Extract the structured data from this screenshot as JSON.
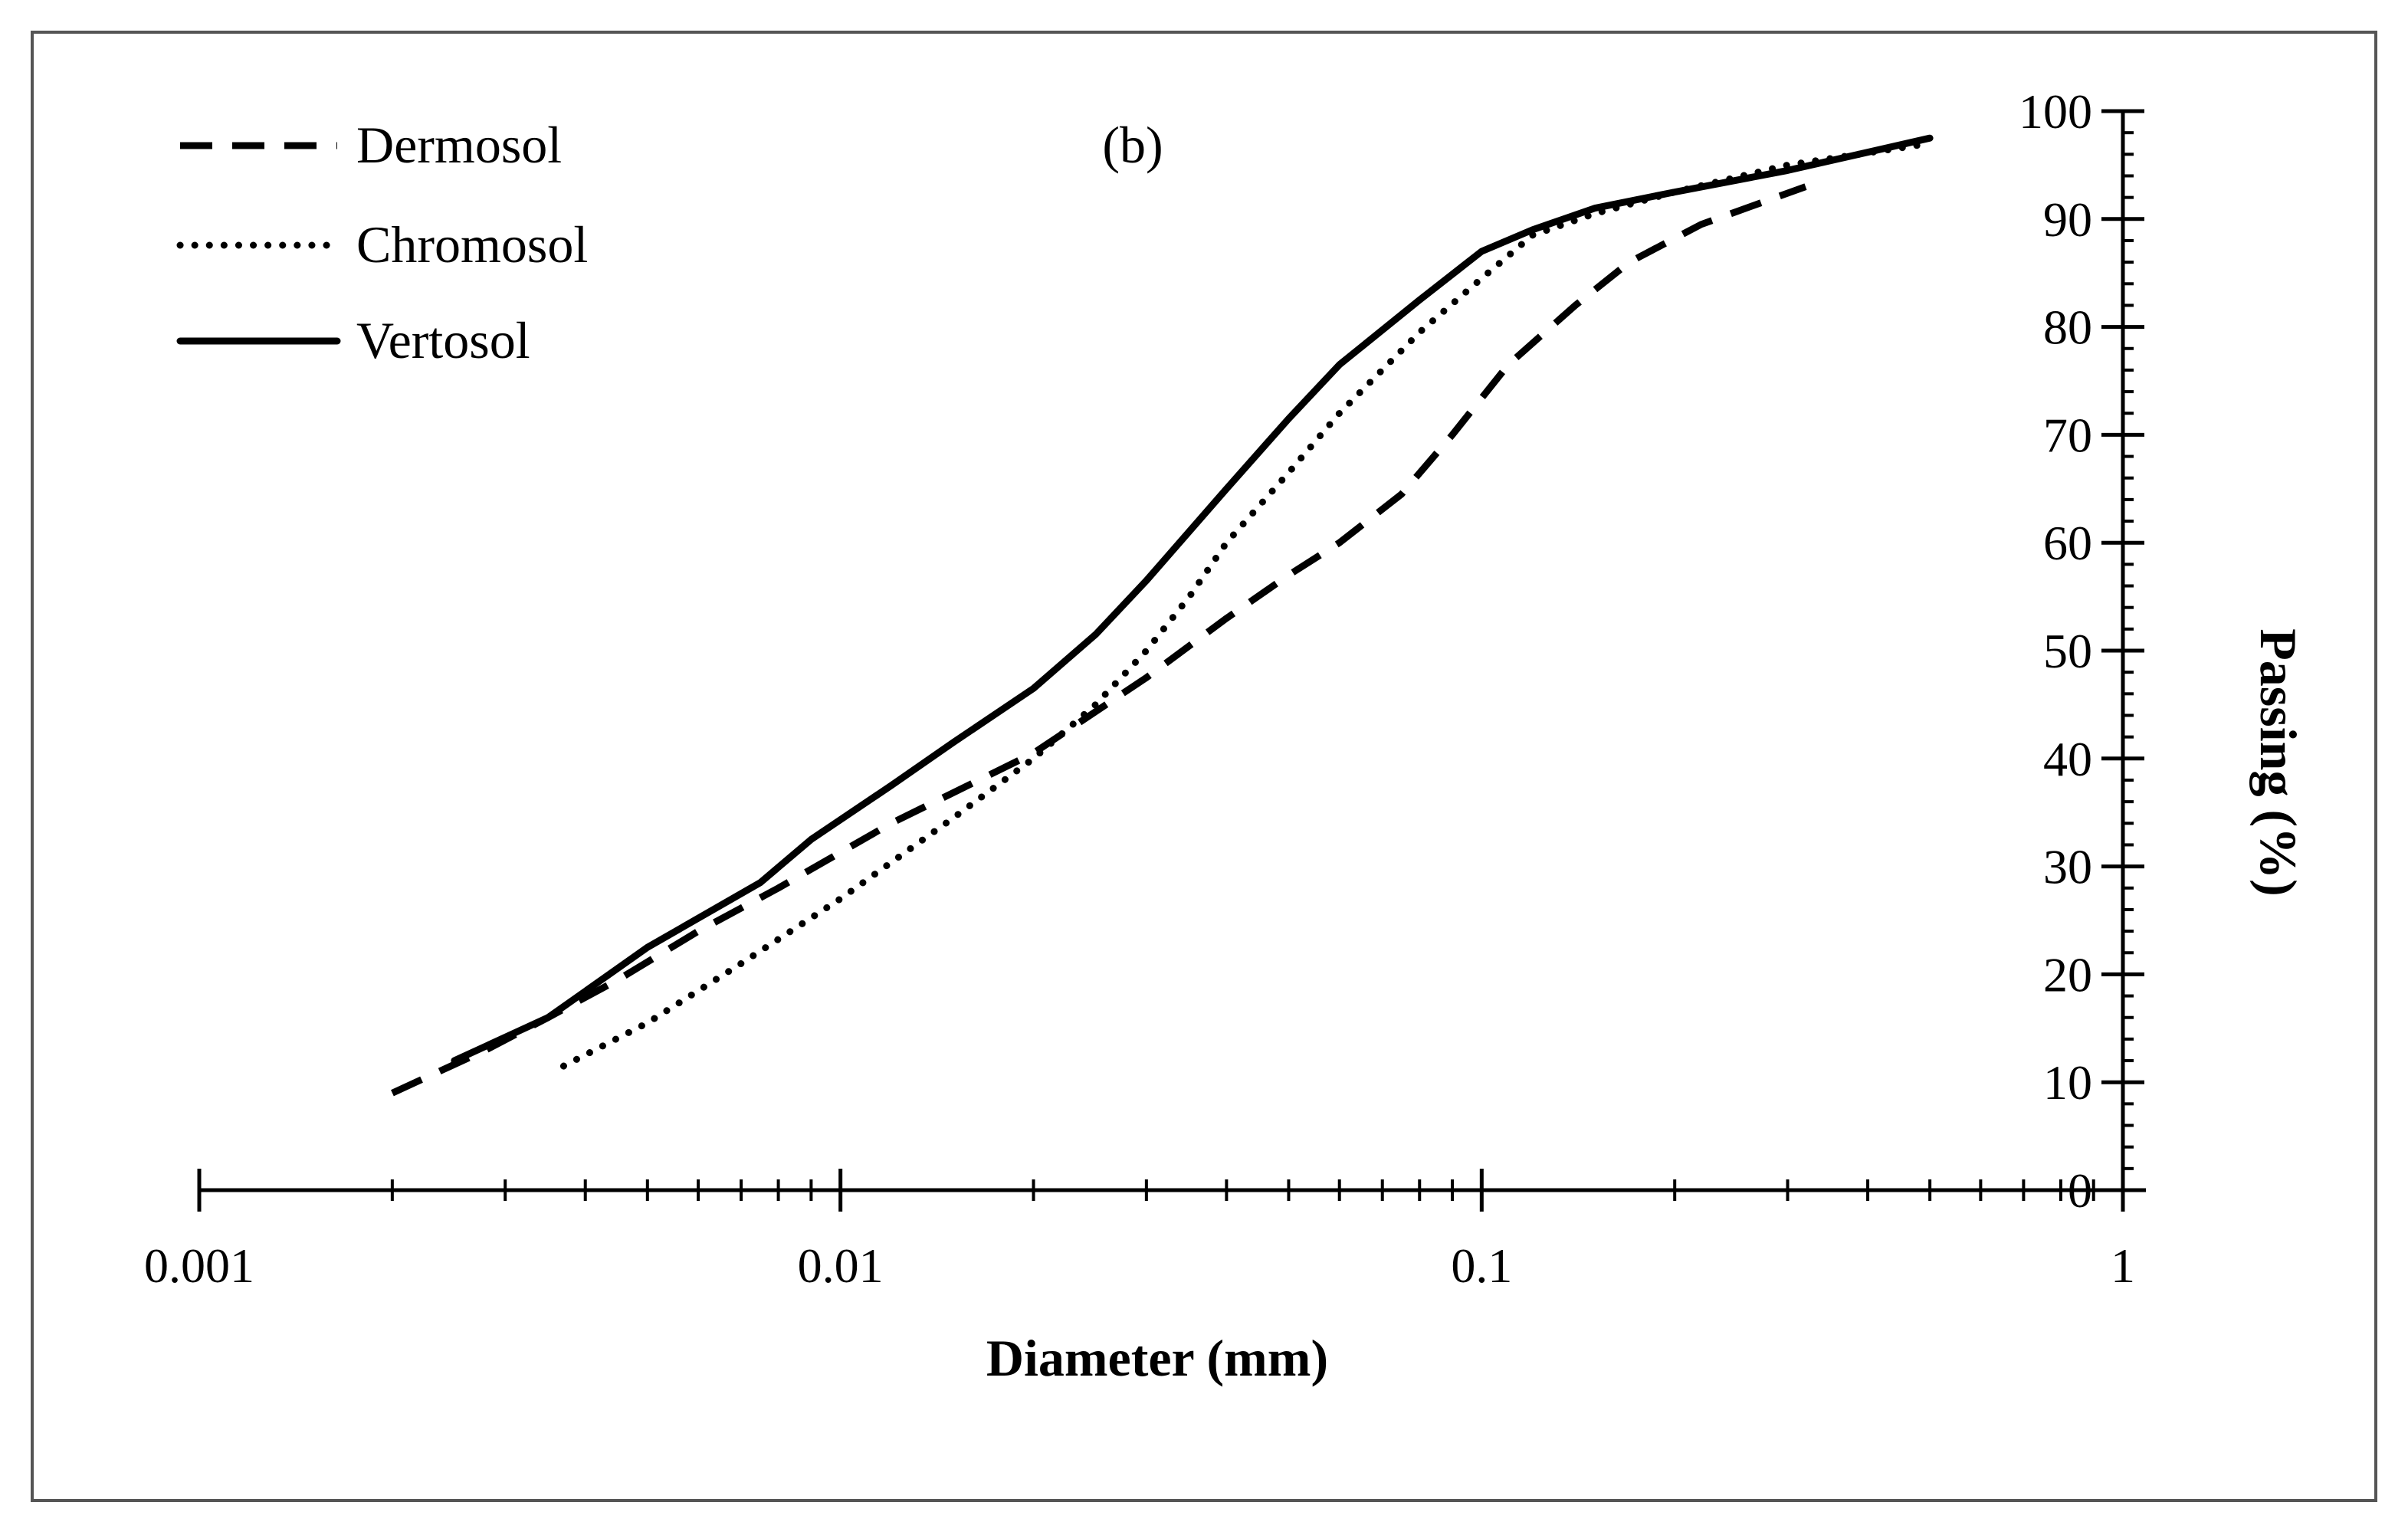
{
  "chart_data": {
    "type": "line",
    "title": "",
    "panel_label": "(b)",
    "xlabel": "Diameter (mm)",
    "ylabel": "Passing (%)",
    "x_scale": "log",
    "xlim": [
      0.001,
      1
    ],
    "ylim": [
      0,
      100
    ],
    "x_ticks": [
      "0.001",
      "0.01",
      "0.1",
      "1"
    ],
    "y_ticks": [
      "0",
      "10",
      "20",
      "30",
      "40",
      "50",
      "60",
      "70",
      "80",
      "90",
      "100"
    ],
    "y_axis_side": "right",
    "legend_position": "top-left",
    "grid": false,
    "series": [
      {
        "name": "Dermosol",
        "style": "dashed",
        "x": [
          0.002,
          0.0028,
          0.0035,
          0.0045,
          0.006,
          0.008,
          0.012,
          0.02,
          0.03,
          0.04,
          0.05,
          0.06,
          0.075,
          0.09,
          0.11,
          0.14,
          0.17,
          0.22,
          0.32
        ],
        "y": [
          9,
          13,
          16,
          19.5,
          24,
          28,
          34,
          40.5,
          47.5,
          53,
          57,
          60,
          64.5,
          70,
          76.5,
          82,
          86,
          89.5,
          93
        ]
      },
      {
        "name": "Chromosol",
        "style": "dotted",
        "x": [
          0.0037,
          0.005,
          0.007,
          0.01,
          0.015,
          0.02,
          0.025,
          0.03,
          0.035,
          0.04,
          0.05,
          0.06,
          0.08,
          0.1,
          0.12,
          0.15,
          0.2,
          0.3,
          0.5
        ],
        "y": [
          11.5,
          15.5,
          21,
          27,
          34.5,
          40,
          45,
          50,
          55,
          60,
          66.5,
          72,
          79.5,
          84.5,
          88.5,
          90.5,
          92.5,
          95,
          97
        ]
      },
      {
        "name": "Vertosol",
        "style": "solid",
        "x": [
          0.0025,
          0.0035,
          0.005,
          0.0075,
          0.009,
          0.012,
          0.015,
          0.02,
          0.025,
          0.03,
          0.04,
          0.05,
          0.06,
          0.08,
          0.1,
          0.12,
          0.15,
          0.2,
          0.3,
          0.5
        ],
        "y": [
          12,
          16,
          22.5,
          28.5,
          32.5,
          37.5,
          41.5,
          46.5,
          51.5,
          56.5,
          65,
          71.5,
          76.5,
          82.5,
          87,
          89,
          91,
          92.5,
          94.5,
          97.5
        ]
      }
    ]
  }
}
